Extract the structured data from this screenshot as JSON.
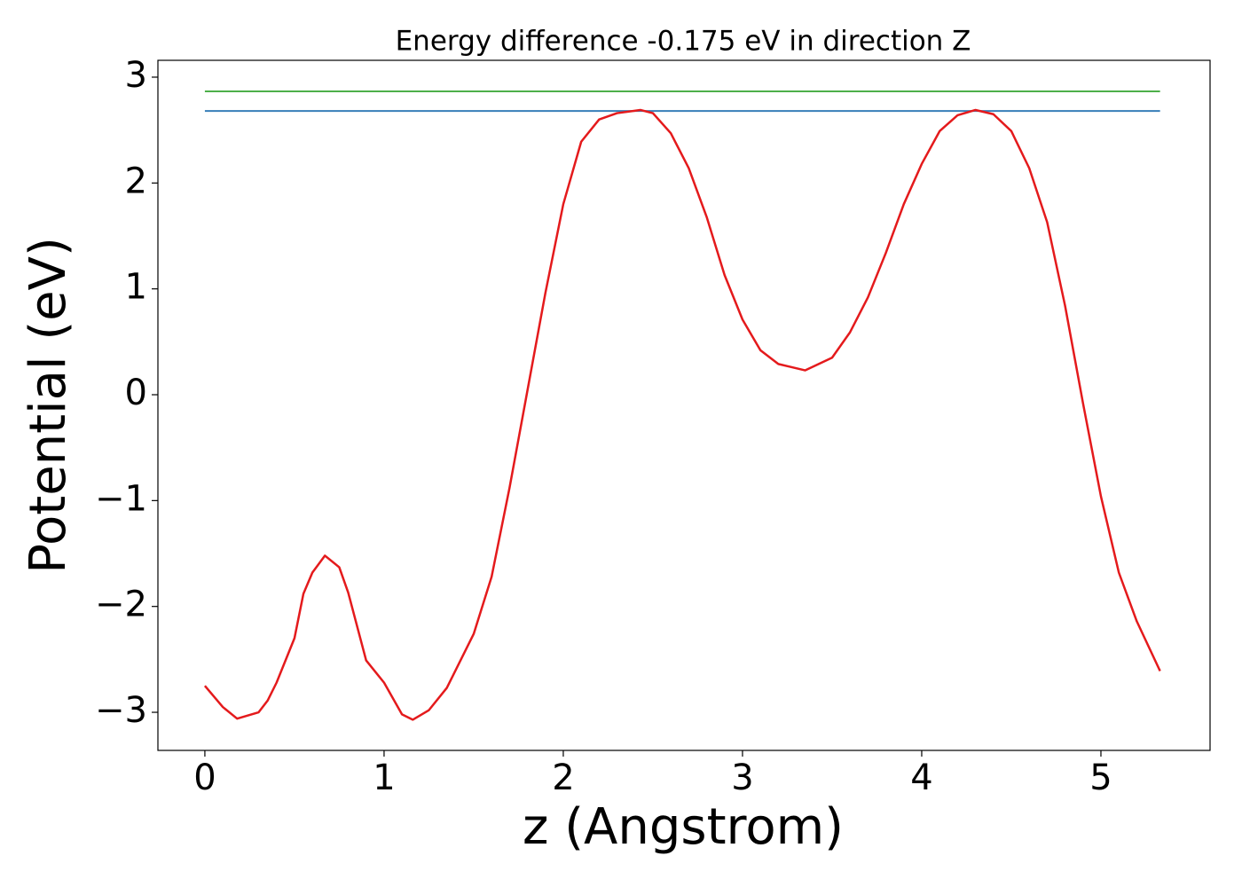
{
  "chart_data": {
    "type": "line",
    "title": "Energy difference -0.175 eV in direction Z",
    "xlabel": "z (Angstrom)",
    "ylabel": "Potential (eV)",
    "xlim": [
      -0.262,
      5.609
    ],
    "ylim": [
      -3.36,
      3.159
    ],
    "xticks": [
      0,
      1,
      2,
      3,
      4,
      5
    ],
    "yticks": [
      {
        "value": -3,
        "label": "−3"
      },
      {
        "value": -2,
        "label": "−2"
      },
      {
        "value": -1,
        "label": "−1"
      },
      0,
      1,
      2,
      3
    ],
    "hlines": [
      {
        "y": 2.866,
        "xmin": 0,
        "xmax": 5.33,
        "color": "#4daf4a"
      },
      {
        "y": 2.68,
        "xmin": 0,
        "xmax": 5.33,
        "color": "#377eb8"
      }
    ],
    "series": [
      {
        "color": "#e41a1c",
        "x": [
          0,
          0.1,
          0.18,
          0.3,
          0.35,
          0.4,
          0.5,
          0.55,
          0.6,
          0.67,
          0.75,
          0.8,
          0.9,
          1.0,
          1.1,
          1.16,
          1.25,
          1.35,
          1.5,
          1.6,
          1.7,
          1.8,
          1.9,
          2.0,
          2.1,
          2.2,
          2.3,
          2.43,
          2.5,
          2.6,
          2.7,
          2.8,
          2.9,
          3.0,
          3.1,
          3.2,
          3.35,
          3.5,
          3.6,
          3.7,
          3.8,
          3.9,
          4.0,
          4.1,
          4.2,
          4.3,
          4.4,
          4.5,
          4.6,
          4.7,
          4.8,
          4.9,
          5.0,
          5.1,
          5.2,
          5.33
        ],
        "values": [
          -2.75,
          -2.95,
          -3.06,
          -3.0,
          -2.89,
          -2.72,
          -2.3,
          -1.88,
          -1.68,
          -1.52,
          -1.63,
          -1.87,
          -2.51,
          -2.72,
          -3.02,
          -3.07,
          -2.98,
          -2.77,
          -2.26,
          -1.72,
          -0.88,
          0.04,
          0.96,
          1.8,
          2.39,
          2.6,
          2.66,
          2.69,
          2.66,
          2.47,
          2.14,
          1.68,
          1.13,
          0.71,
          0.42,
          0.29,
          0.23,
          0.35,
          0.59,
          0.92,
          1.34,
          1.8,
          2.18,
          2.49,
          2.64,
          2.69,
          2.65,
          2.49,
          2.14,
          1.63,
          0.84,
          -0.08,
          -0.96,
          -1.68,
          -2.14,
          -2.61
        ]
      }
    ]
  }
}
